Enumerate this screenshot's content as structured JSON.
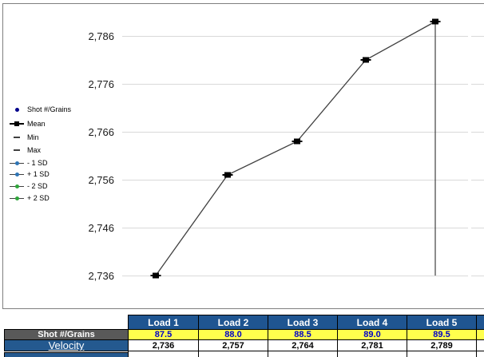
{
  "chart": {
    "legend": [
      {
        "label": "Shot #/Grains",
        "marker": "dot",
        "color": "#00008B"
      },
      {
        "label": "Mean",
        "marker": "square-line",
        "color": "#000000"
      },
      {
        "label": "Min",
        "marker": "dash",
        "color": "#404040"
      },
      {
        "label": "Max",
        "marker": "dash",
        "color": "#404040"
      },
      {
        "label": "- 1 SD",
        "marker": "dot-line",
        "color": "#2E75B6"
      },
      {
        "label": "+ 1 SD",
        "marker": "dot-line",
        "color": "#2E75B6"
      },
      {
        "label": "- 2 SD",
        "marker": "dot-line",
        "color": "#2FA63B"
      },
      {
        "label": "+ 2 SD",
        "marker": "dot-line",
        "color": "#2FA63B"
      }
    ],
    "y_ticks": [
      {
        "value": 2786,
        "label": "2,786"
      },
      {
        "value": 2776,
        "label": "2,776"
      },
      {
        "value": 2766,
        "label": "2,766"
      },
      {
        "value": 2756,
        "label": "2,756"
      },
      {
        "value": 2746,
        "label": "2,746"
      },
      {
        "value": 2736,
        "label": "2,736"
      }
    ],
    "line_color": "#404040",
    "marker_color": "#000000"
  },
  "chart_data": {
    "type": "line",
    "categories": [
      "Load 1",
      "Load 2",
      "Load 3",
      "Load 4",
      "Load 5"
    ],
    "charge_grains": [
      87.5,
      88.0,
      88.5,
      89.0,
      89.5
    ],
    "series": [
      {
        "name": "Mean",
        "values": [
          2736,
          2757,
          2764,
          2781,
          2789
        ]
      }
    ],
    "highlow_line": {
      "category_index": 4,
      "from": 2789,
      "to": 2736
    },
    "ylabel": "Velocity",
    "ylim": [
      2730,
      2792
    ],
    "yticks": [
      2736,
      2746,
      2756,
      2766,
      2776,
      2786
    ],
    "grid": "horizontal",
    "legend_position": "left"
  },
  "table": {
    "columns": [
      "Load 1",
      "Load 2",
      "Load 3",
      "Load 4",
      "Load 5"
    ],
    "rows": [
      {
        "label": "Shot #/Grains",
        "values": [
          "87.5",
          "88.0",
          "88.5",
          "89.0",
          "89.5"
        ]
      },
      {
        "label": "Velocity",
        "values": [
          "2,736",
          "2,757",
          "2,764",
          "2,781",
          "2,789"
        ]
      }
    ],
    "colors": {
      "header_bg": "#1F5591",
      "label_gray_bg": "#595959",
      "label_blue_bg": "#24598F",
      "yellow_bg": "#FFFF4D",
      "yellow_text": "#0000C8"
    }
  }
}
